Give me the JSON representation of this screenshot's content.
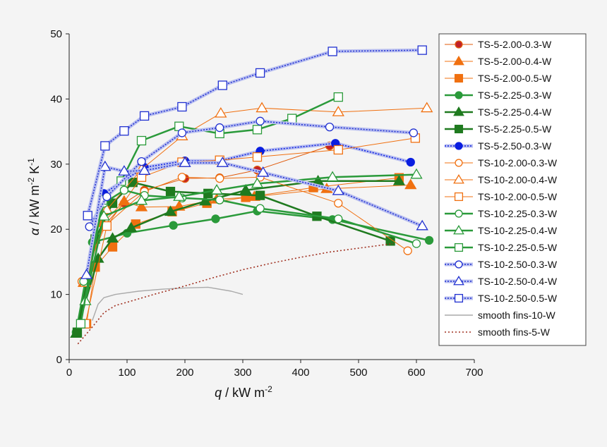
{
  "chart_data": {
    "type": "line",
    "xlim": [
      0,
      700
    ],
    "ylim": [
      0,
      50
    ],
    "xticks": [
      0,
      100,
      200,
      300,
      400,
      500,
      600,
      700
    ],
    "yticks": [
      0,
      10,
      20,
      30,
      40,
      50
    ],
    "xlabel": {
      "sym": "q",
      "text": " / kW m",
      "sup": "-2"
    },
    "ylabel": {
      "sym": "α",
      "text": " / kW m",
      "sup1": "-2",
      "mid": " K",
      "sup2": "-1"
    },
    "grid": false,
    "legend_position": "right",
    "series": [
      {
        "name": "TS-5-2.00-0.3-W",
        "color": "#e05a0a",
        "marker": "circle",
        "fill": "#c0202a",
        "line": "thin",
        "points": [
          [
            22,
            12
          ],
          [
            60,
            20.5
          ],
          [
            95,
            24
          ],
          [
            130,
            26
          ],
          [
            200,
            27.8
          ],
          [
            260,
            27.9
          ],
          [
            325,
            29.1
          ],
          [
            450,
            32.8
          ]
        ]
      },
      {
        "name": "TS-5-2.00-0.4-W",
        "color": "#f07010",
        "marker": "triangle",
        "fill": "#f07010",
        "line": "thin",
        "points": [
          [
            25,
            11.8
          ],
          [
            58,
            21
          ],
          [
            95,
            24.3
          ],
          [
            125,
            23.4
          ],
          [
            190,
            23.5
          ],
          [
            255,
            24.6
          ],
          [
            320,
            25
          ],
          [
            445,
            26.2
          ],
          [
            590,
            26.8
          ]
        ]
      },
      {
        "name": "TS-5-2.00-0.5-W",
        "color": "#f07010",
        "marker": "square",
        "fill": "#f07010",
        "line": "thin",
        "points": [
          [
            30,
            5.5
          ],
          [
            45,
            14.2
          ],
          [
            75,
            17.3
          ],
          [
            115,
            20.8
          ],
          [
            178,
            22.7
          ],
          [
            238,
            24
          ],
          [
            305,
            24.9
          ],
          [
            422,
            26.4
          ],
          [
            570,
            27.9
          ]
        ]
      },
      {
        "name": "TS-5-2.25-0.3-W",
        "color": "#2a9a3a",
        "marker": "circle",
        "fill": "#2a9a3a",
        "line": "green",
        "points": [
          [
            12,
            4.2
          ],
          [
            40,
            18
          ],
          [
            100,
            19.4
          ],
          [
            180,
            20.6
          ],
          [
            253,
            21.6
          ],
          [
            325,
            22.8
          ],
          [
            455,
            21.5
          ],
          [
            622,
            18.3
          ]
        ]
      },
      {
        "name": "TS-5-2.25-0.4-W",
        "color": "#1f7a1f",
        "marker": "triangle",
        "fill": "#1f7a1f",
        "line": "green",
        "points": [
          [
            12,
            4
          ],
          [
            50,
            15.5
          ],
          [
            75,
            18.6
          ],
          [
            107,
            20.2
          ],
          [
            175,
            22.7
          ],
          [
            235,
            24.3
          ],
          [
            305,
            26
          ],
          [
            430,
            27.4
          ],
          [
            570,
            27.4
          ]
        ]
      },
      {
        "name": "TS-5-2.25-0.5-W",
        "color": "#1f7a1f",
        "marker": "square",
        "fill": "#1f7a1f",
        "line": "green",
        "points": [
          [
            14,
            4.2
          ],
          [
            45,
            18.5
          ],
          [
            75,
            24
          ],
          [
            110,
            27.2
          ],
          [
            175,
            25.8
          ],
          [
            240,
            25.5
          ],
          [
            330,
            25.2
          ],
          [
            428,
            22
          ],
          [
            555,
            18.2
          ]
        ]
      },
      {
        "name": "TS-5-2.50-0.3-W",
        "color": "#0a1ee0",
        "marker": "circle",
        "fill": "#0a1ee0",
        "line": "blue",
        "points": [
          [
            60,
            25.5
          ],
          [
            130,
            29.5
          ],
          [
            200,
            30.5
          ],
          [
            260,
            30.5
          ],
          [
            330,
            32
          ],
          [
            460,
            33.2
          ],
          [
            590,
            30.3
          ]
        ]
      },
      {
        "name": "TS-10-2.00-0.3-W",
        "color": "#f07010",
        "marker": "circle",
        "fill": "#ffffff",
        "line": "thin",
        "points": [
          [
            22,
            12
          ],
          [
            62,
            20.5
          ],
          [
            130,
            25.8
          ],
          [
            195,
            28
          ],
          [
            260,
            27.8
          ],
          [
            330,
            28
          ],
          [
            465,
            24
          ],
          [
            585,
            16.7
          ]
        ]
      },
      {
        "name": "TS-10-2.00-0.4-W",
        "color": "#f07010",
        "marker": "triangle",
        "fill": "#ffffff",
        "line": "thin",
        "points": [
          [
            28,
            11.8
          ],
          [
            65,
            23
          ],
          [
            125,
            29.2
          ],
          [
            195,
            34.3
          ],
          [
            262,
            37.8
          ],
          [
            333,
            38.6
          ],
          [
            465,
            38
          ],
          [
            618,
            38.6
          ]
        ]
      },
      {
        "name": "TS-10-2.00-0.5-W",
        "color": "#f07010",
        "marker": "square",
        "fill": "#ffffff",
        "line": "thin",
        "points": [
          [
            28,
            5.5
          ],
          [
            65,
            20.5
          ],
          [
            125,
            28
          ],
          [
            195,
            30.3
          ],
          [
            260,
            30.6
          ],
          [
            325,
            31.1
          ],
          [
            465,
            32.2
          ],
          [
            598,
            34
          ]
        ]
      },
      {
        "name": "TS-10-2.25-0.3-W",
        "color": "#2a9a3a",
        "marker": "circle",
        "fill": "#ffffff",
        "line": "green",
        "points": [
          [
            25,
            12
          ],
          [
            60,
            24
          ],
          [
            95,
            26
          ],
          [
            130,
            25.2
          ],
          [
            195,
            24.8
          ],
          [
            260,
            24.5
          ],
          [
            330,
            23.2
          ],
          [
            465,
            21.6
          ],
          [
            600,
            17.8
          ]
        ]
      },
      {
        "name": "TS-10-2.25-0.4-W",
        "color": "#2a9a3a",
        "marker": "triangle",
        "fill": "#ffffff",
        "line": "green",
        "points": [
          [
            28,
            9
          ],
          [
            60,
            22
          ],
          [
            125,
            24.4
          ],
          [
            190,
            25
          ],
          [
            255,
            26
          ],
          [
            325,
            27
          ],
          [
            455,
            28
          ],
          [
            600,
            28.4
          ]
        ]
      },
      {
        "name": "TS-10-2.25-0.5-W",
        "color": "#2a9a3a",
        "marker": "square",
        "fill": "#ffffff",
        "line": "green",
        "points": [
          [
            20,
            5.5
          ],
          [
            58,
            24.5
          ],
          [
            90,
            27.4
          ],
          [
            125,
            33.6
          ],
          [
            190,
            35.8
          ],
          [
            260,
            34.7
          ],
          [
            325,
            35.3
          ],
          [
            385,
            37
          ],
          [
            465,
            40.3
          ]
        ]
      },
      {
        "name": "TS-10-2.50-0.3-W",
        "color": "#2030d0",
        "marker": "circle",
        "fill": "#ffffff",
        "line": "blue",
        "points": [
          [
            35,
            20.4
          ],
          [
            65,
            25
          ],
          [
            125,
            30.4
          ],
          [
            195,
            34.8
          ],
          [
            260,
            35.6
          ],
          [
            330,
            36.6
          ],
          [
            450,
            35.7
          ],
          [
            595,
            34.8
          ]
        ]
      },
      {
        "name": "TS-10-2.50-0.4-W",
        "color": "#2030d0",
        "marker": "triangle",
        "fill": "#ffffff",
        "line": "blue",
        "points": [
          [
            30,
            13
          ],
          [
            62,
            29.6
          ],
          [
            95,
            28.9
          ],
          [
            130,
            29
          ],
          [
            200,
            30.2
          ],
          [
            265,
            30.2
          ],
          [
            335,
            28.7
          ],
          [
            465,
            25.9
          ],
          [
            610,
            20.5
          ]
        ]
      },
      {
        "name": "TS-10-2.50-0.5-W",
        "color": "#2030d0",
        "marker": "square",
        "fill": "#ffffff",
        "line": "blue",
        "points": [
          [
            32,
            22.1
          ],
          [
            62,
            32.8
          ],
          [
            95,
            35.1
          ],
          [
            130,
            37.4
          ],
          [
            195,
            38.8
          ],
          [
            265,
            42.1
          ],
          [
            330,
            44
          ],
          [
            455,
            47.3
          ],
          [
            610,
            47.5
          ]
        ]
      },
      {
        "name": "smooth fins-10-W",
        "color": "#b0b0b0",
        "marker": "none",
        "fill": "none",
        "line": "grey",
        "points": [
          [
            40,
            6
          ],
          [
            50,
            8.5
          ],
          [
            60,
            9.5
          ],
          [
            80,
            10
          ],
          [
            120,
            10.5
          ],
          [
            160,
            10.8
          ],
          [
            200,
            11
          ],
          [
            240,
            11.1
          ],
          [
            280,
            10.5
          ],
          [
            300,
            10
          ]
        ]
      },
      {
        "name": "smooth fins-5-W",
        "color": "#a03020",
        "marker": "none",
        "fill": "none",
        "line": "dotted",
        "points": [
          [
            15,
            2.4
          ],
          [
            40,
            5
          ],
          [
            60,
            7.2
          ],
          [
            80,
            8.3
          ],
          [
            100,
            8.8
          ],
          [
            150,
            10.1
          ],
          [
            200,
            11.3
          ],
          [
            250,
            12.6
          ],
          [
            300,
            13.8
          ],
          [
            350,
            14.8
          ],
          [
            400,
            15.7
          ],
          [
            450,
            16.5
          ],
          [
            500,
            17.1
          ],
          [
            560,
            17.8
          ]
        ]
      }
    ]
  }
}
